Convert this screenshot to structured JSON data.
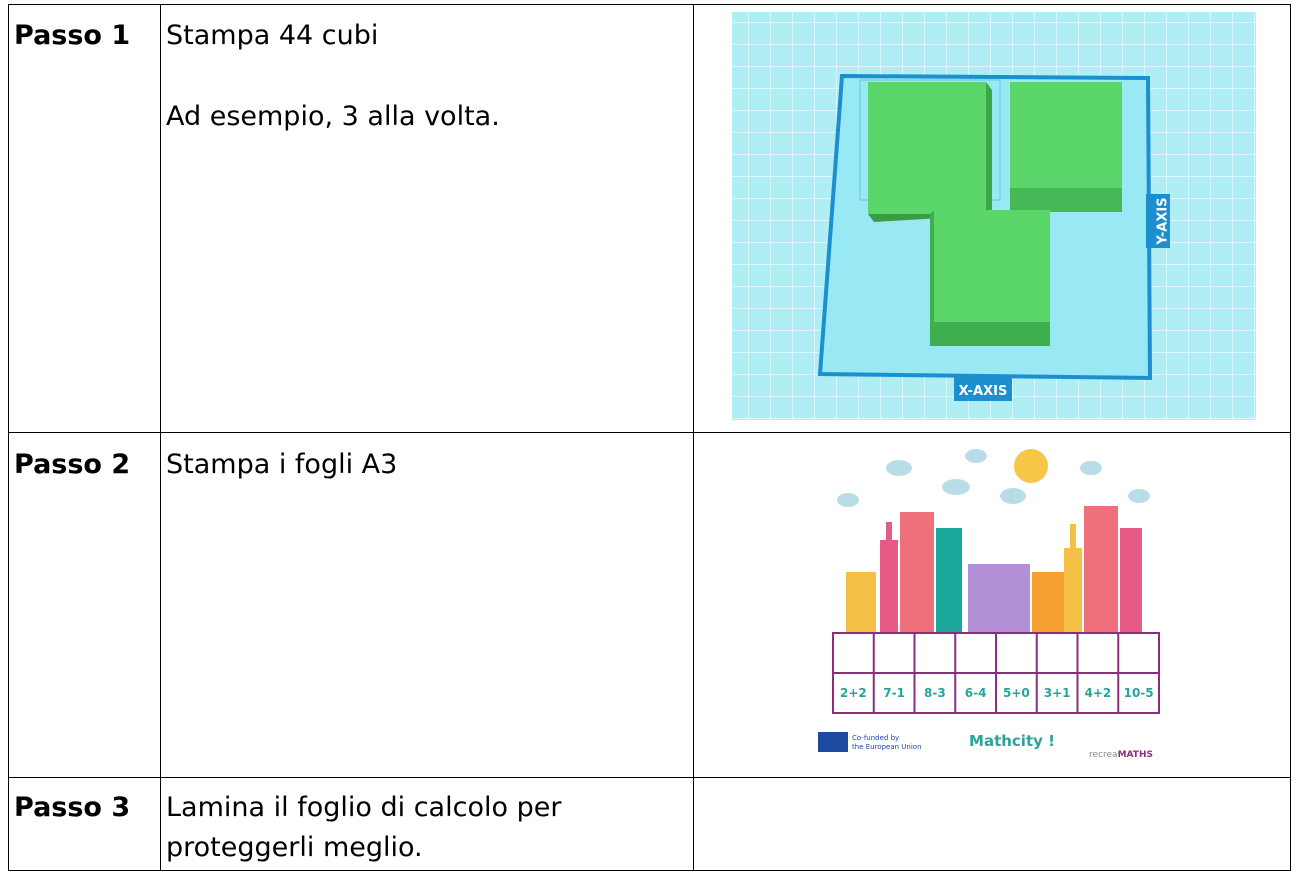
{
  "table": {
    "rows": [
      {
        "step": "Passo 1",
        "text": [
          "Stampa 44 cubi",
          "Ad esempio, 3 alla volta."
        ],
        "image": {
          "x_axis": "X-AXIS",
          "y_axis": "Y-AXIS"
        }
      },
      {
        "step": "Passo 2",
        "text": [
          "Stampa i fogli A3"
        ],
        "image": {
          "sums": [
            "2+2",
            "7-1",
            "8-3",
            "6-4",
            "5+0",
            "3+1",
            "4+2",
            "10-5"
          ],
          "title": "Mathcity !",
          "funding": [
            "Co-funded by",
            "the European Union"
          ],
          "logo": [
            "recrea",
            "MATHS"
          ]
        }
      },
      {
        "step": "Passo 3",
        "text": [
          "Lamina il foglio di calcolo per",
          "proteggerli meglio."
        ]
      }
    ]
  }
}
